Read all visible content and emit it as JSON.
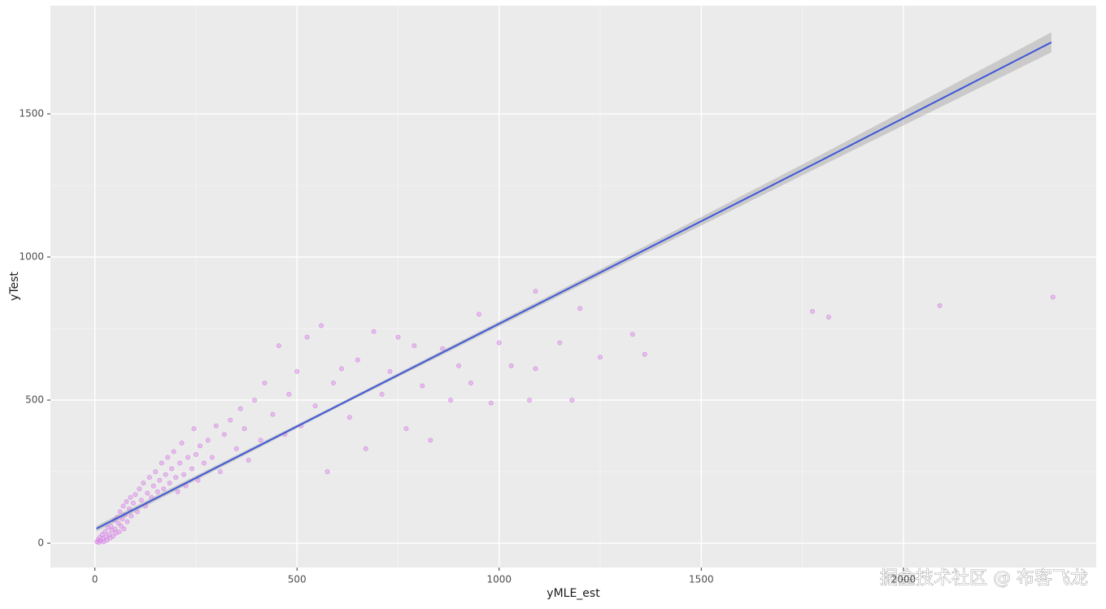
{
  "chart_data": {
    "type": "scatter",
    "x_label": "yMLE_est",
    "y_label": "yTest",
    "watermark": "掘金技术社区 @ 布客飞龙",
    "xlim": [
      -110,
      2477
    ],
    "ylim": [
      -85,
      1878
    ],
    "xticks": [
      0,
      500,
      1000,
      1500,
      2000
    ],
    "yticks": [
      0,
      500,
      1000,
      1500
    ],
    "grid": true,
    "minor_grid": true,
    "color": "#e396ee",
    "x": [
      5,
      8,
      10,
      12,
      15,
      18,
      20,
      22,
      25,
      28,
      30,
      32,
      35,
      38,
      40,
      42,
      45,
      48,
      50,
      52,
      55,
      58,
      60,
      62,
      65,
      68,
      70,
      72,
      75,
      78,
      80,
      85,
      88,
      90,
      95,
      100,
      105,
      110,
      115,
      120,
      125,
      130,
      135,
      140,
      145,
      150,
      155,
      160,
      165,
      170,
      175,
      180,
      185,
      190,
      195,
      200,
      205,
      210,
      215,
      220,
      225,
      230,
      240,
      245,
      250,
      255,
      260,
      270,
      280,
      290,
      300,
      310,
      320,
      335,
      350,
      360,
      370,
      380,
      395,
      410,
      420,
      440,
      455,
      470,
      480,
      500,
      510,
      525,
      545,
      560,
      575,
      590,
      610,
      630,
      650,
      670,
      690,
      710,
      730,
      750,
      770,
      790,
      810,
      830,
      860,
      880,
      900,
      930,
      950,
      980,
      1000,
      1030,
      1075,
      1090,
      1090,
      1150,
      1180,
      1200,
      1250,
      1330,
      1360,
      1775,
      1815,
      2090,
      2370
    ],
    "values": [
      5,
      12,
      3,
      20,
      8,
      30,
      15,
      5,
      40,
      22,
      10,
      55,
      30,
      18,
      60,
      45,
      25,
      80,
      50,
      35,
      90,
      70,
      40,
      110,
      60,
      85,
      130,
      50,
      100,
      145,
      75,
      120,
      160,
      95,
      140,
      170,
      110,
      190,
      150,
      210,
      130,
      175,
      230,
      160,
      200,
      250,
      180,
      220,
      280,
      190,
      240,
      300,
      210,
      260,
      320,
      230,
      180,
      280,
      350,
      240,
      200,
      300,
      260,
      400,
      310,
      220,
      340,
      280,
      360,
      300,
      410,
      250,
      380,
      430,
      330,
      470,
      400,
      290,
      500,
      360,
      560,
      450,
      690,
      380,
      520,
      600,
      410,
      720,
      480,
      760,
      250,
      560,
      610,
      440,
      640,
      330,
      740,
      520,
      600,
      720,
      400,
      690,
      550,
      360,
      680,
      500,
      620,
      560,
      800,
      490,
      700,
      620,
      500,
      610,
      880,
      700,
      500,
      820,
      650,
      730,
      660,
      810,
      790,
      830,
      860
    ],
    "fit": {
      "color": "#3f57d8",
      "band_color": "#999999",
      "x": [
        4,
        600,
        1200,
        1800,
        2366
      ],
      "y": [
        51,
        480,
        910,
        1340,
        1750
      ],
      "lower": [
        41,
        474,
        900,
        1320,
        1715
      ],
      "upper": [
        61,
        486,
        920,
        1360,
        1785
      ]
    }
  }
}
